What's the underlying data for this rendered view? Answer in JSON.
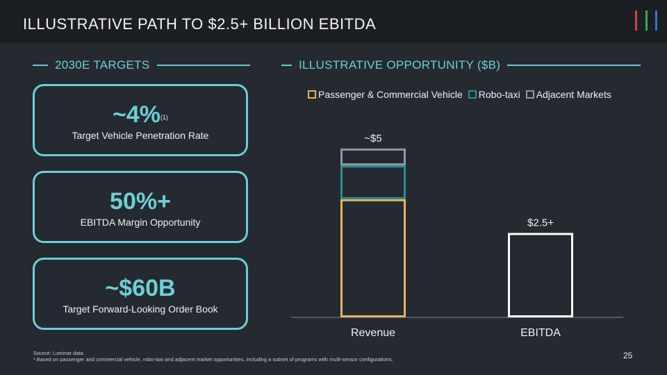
{
  "header": {
    "title": "ILLUSTRATIVE PATH TO $2.5+ BILLION EBITDA"
  },
  "brand": {
    "stripe_colors": [
      "#d9403a",
      "#3aa64c",
      "#3b6fcf"
    ]
  },
  "left": {
    "heading": "2030E TARGETS",
    "cards": [
      {
        "value": "~4%",
        "sup": "(1)",
        "label": "Target Vehicle Penetration Rate"
      },
      {
        "value": "50%+",
        "sup": "",
        "label": "EBITDA Margin Opportunity"
      },
      {
        "value": "~$60B",
        "sup": "",
        "label": "Target Forward-Looking Order Book"
      }
    ]
  },
  "right": {
    "heading": "ILLUSTRATIVE OPPORTUNITY ($B)"
  },
  "chart_data": {
    "type": "bar",
    "stacked": true,
    "categories": [
      "Revenue",
      "EBITDA"
    ],
    "series": [
      {
        "name": "Passenger & Commercial Vehicle",
        "color": "#e2b45f",
        "values": [
          3.5,
          null
        ]
      },
      {
        "name": "Robo-taxi",
        "color": "#2a8f93",
        "values": [
          1.0,
          null
        ]
      },
      {
        "name": "Adjacent Markets",
        "color": "#8f9aa1",
        "values": [
          0.5,
          null
        ]
      },
      {
        "name": "EBITDA",
        "color": "#ffffff",
        "values": [
          null,
          2.5
        ]
      }
    ],
    "totals": [
      5,
      2.5
    ],
    "data_labels": [
      "~$5",
      "$2.5+"
    ],
    "ylim": [
      0,
      5.8
    ],
    "legend_position": "top",
    "grid": false
  },
  "footer": {
    "source": "Source: Luminar data.",
    "note": "¹ Based on passenger and commercial vehicle, robo-taxi and adjacent market opportunities, including a subset of programs with multi-sensor configurations.",
    "page": "25"
  }
}
